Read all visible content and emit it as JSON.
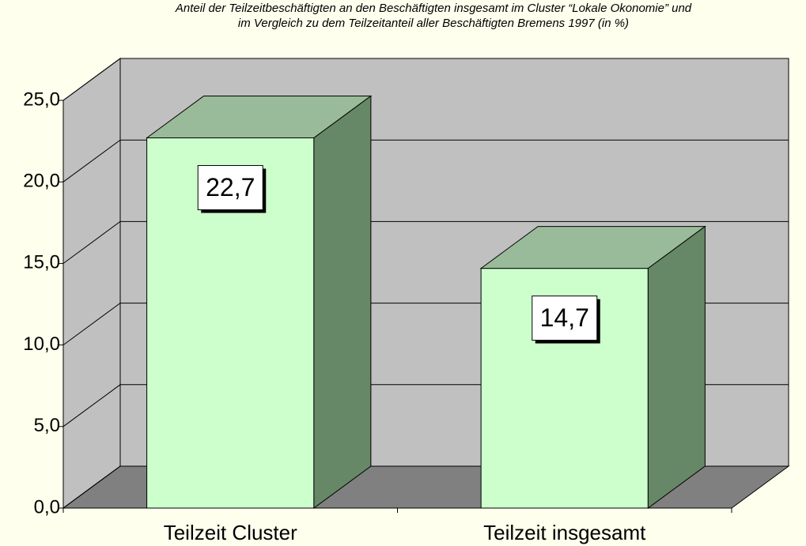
{
  "chart_data": {
    "type": "bar3d",
    "title": [
      "Anteil der Teilzeitbeschäftigten an den Beschäftigten insgesamt im Cluster “Lokale Okonomie” und",
      "im Vergleich zu dem Teilzeitanteil aller Beschäftigten Bremens 1997 (in %)"
    ],
    "categories": [
      "Teilzeit Cluster",
      "Teilzeit insgesamt"
    ],
    "values": [
      22.7,
      14.7
    ],
    "value_labels": [
      "22,7",
      "14,7"
    ],
    "color": "#ccffcc",
    "ylim": [
      0,
      25
    ],
    "yticks": [
      {
        "value": 0,
        "label": "0,0"
      },
      {
        "value": 5,
        "label": "5,0"
      },
      {
        "value": 10,
        "label": "10,0"
      },
      {
        "value": 15,
        "label": "15,0"
      },
      {
        "value": 20,
        "label": "20,0"
      },
      {
        "value": 25,
        "label": "25,0"
      }
    ],
    "grid": true
  }
}
